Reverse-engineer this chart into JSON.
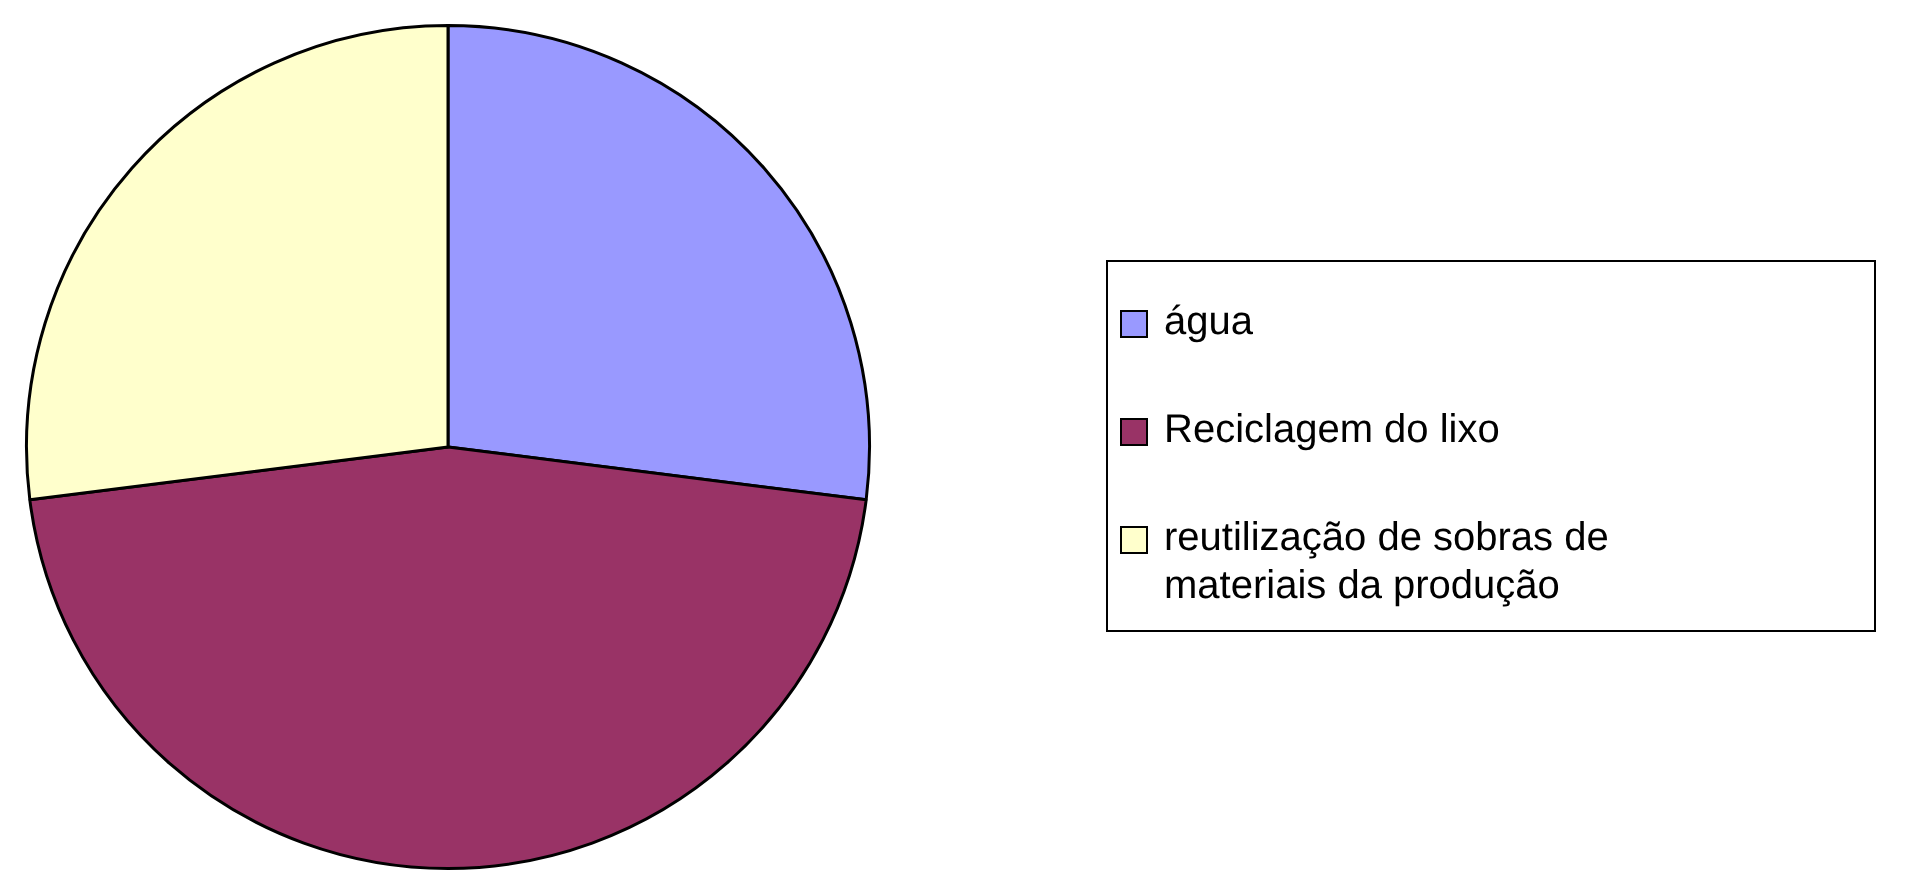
{
  "chart_data": {
    "type": "pie",
    "categories": [
      "água",
      "Reciclagem do lixo",
      "reutilização de sobras de materiais da produção"
    ],
    "values": [
      27,
      46,
      27
    ],
    "colors": [
      "#9999ff",
      "#993366",
      "#ffffcc"
    ],
    "legend": "right"
  }
}
